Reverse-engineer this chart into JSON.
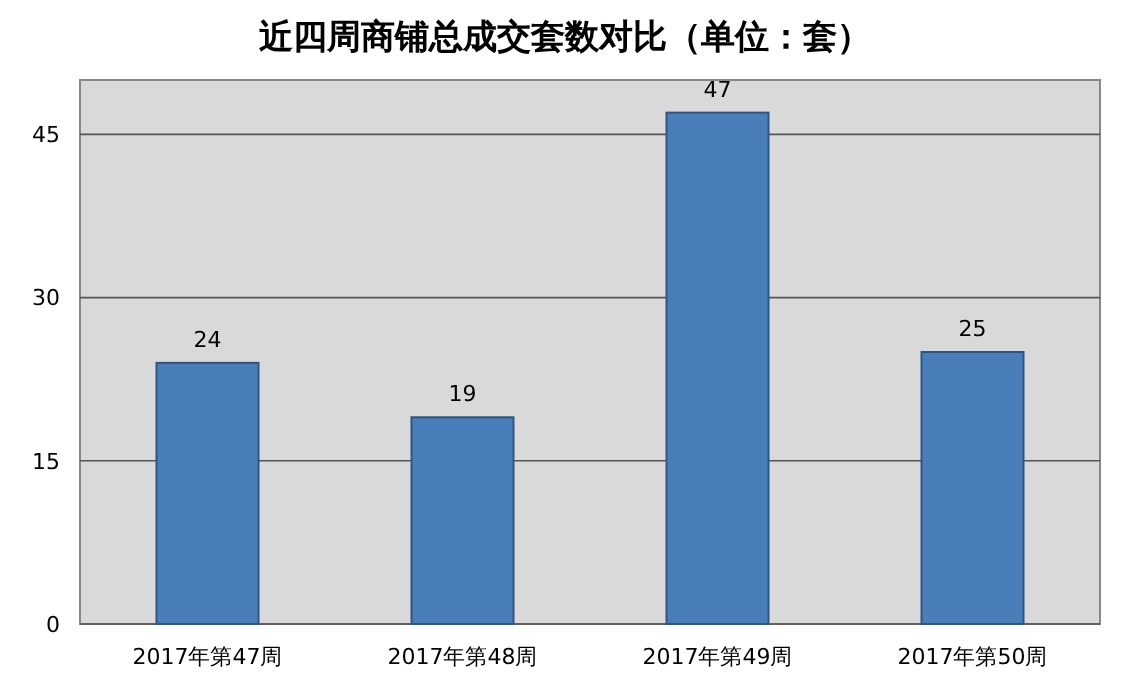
{
  "chart_data": {
    "type": "bar",
    "title": "近四周商铺总成交套数对比（单位：套）",
    "categories": [
      "2017年第47周",
      "2017年第48周",
      "2017年第49周",
      "2017年第50周"
    ],
    "values": [
      24,
      19,
      47,
      25
    ],
    "color": "#4a7ebb",
    "ylim": [
      0,
      50
    ],
    "yticks": [
      0,
      15,
      30,
      45
    ],
    "grid": "y",
    "data_labels": true
  }
}
